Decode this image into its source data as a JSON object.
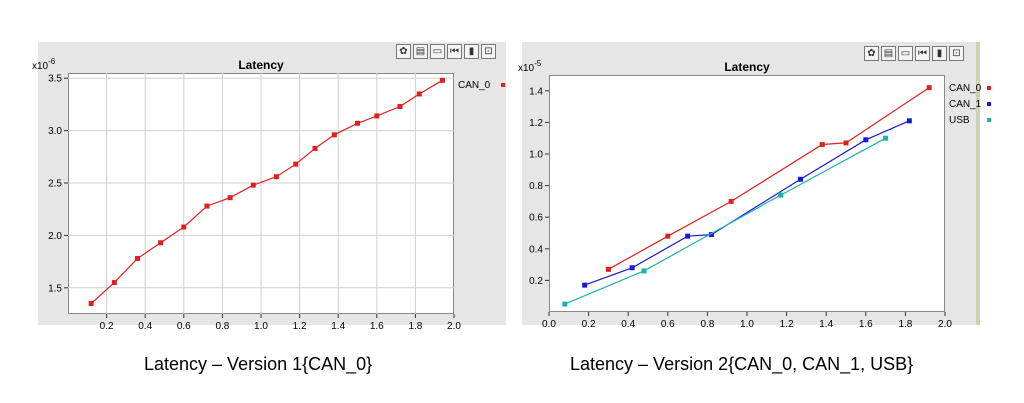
{
  "captions": {
    "chart1": "Latency – Version 1{CAN_0}",
    "chart2": "Latency – Version 2{CAN_0, CAN_1, USB}"
  },
  "toolbar_icons": [
    "palette-icon",
    "save-icon",
    "print-icon",
    "first-page-icon",
    "chart-export-icon",
    "zoom-fit-icon"
  ],
  "chart_data": [
    {
      "type": "line",
      "title": "Latency",
      "y_exponent_label": "x10",
      "y_exponent": "-6",
      "xlim": [
        0.0,
        2.0
      ],
      "ylim": [
        1.25,
        3.55
      ],
      "x_ticks": [
        "0.2",
        "0.4",
        "0.6",
        "0.8",
        "1.0",
        "1.2",
        "1.4",
        "1.6",
        "1.8",
        "2.0"
      ],
      "x_tick_values": [
        0.2,
        0.4,
        0.6,
        0.8,
        1.0,
        1.2,
        1.4,
        1.6,
        1.8,
        2.0
      ],
      "y_ticks": [
        "1.5",
        "2.0",
        "2.5",
        "3.0",
        "3.5"
      ],
      "y_tick_values": [
        1.5,
        2.0,
        2.5,
        3.0,
        3.5
      ],
      "grid": true,
      "legend_position": "right",
      "series": [
        {
          "name": "CAN_0",
          "color": "#e02020",
          "x": [
            0.12,
            0.24,
            0.36,
            0.48,
            0.6,
            0.72,
            0.84,
            0.96,
            1.08,
            1.18,
            1.28,
            1.38,
            1.5,
            1.6,
            1.72,
            1.82,
            1.94
          ],
          "y": [
            1.35,
            1.55,
            1.78,
            1.93,
            2.08,
            2.28,
            2.36,
            2.48,
            2.56,
            2.68,
            2.83,
            2.96,
            3.07,
            3.14,
            3.23,
            3.35,
            3.48
          ]
        }
      ]
    },
    {
      "type": "line",
      "title": "Latency",
      "y_exponent_label": "x10",
      "y_exponent": "-5",
      "xlim": [
        0.0,
        2.0
      ],
      "ylim": [
        0.0,
        1.5
      ],
      "x_ticks": [
        "0.0",
        "0.2",
        "0.4",
        "0.6",
        "0.8",
        "1.0",
        "1.2",
        "1.4",
        "1.6",
        "1.8",
        "2.0"
      ],
      "x_tick_values": [
        0.0,
        0.2,
        0.4,
        0.6,
        0.8,
        1.0,
        1.2,
        1.4,
        1.6,
        1.8,
        2.0
      ],
      "y_ticks": [
        "0.2",
        "0.4",
        "0.6",
        "0.8",
        "1.0",
        "1.2",
        "1.4"
      ],
      "y_tick_values": [
        0.2,
        0.4,
        0.6,
        0.8,
        1.0,
        1.2,
        1.4
      ],
      "grid": false,
      "legend_position": "right",
      "series": [
        {
          "name": "CAN_0",
          "color": "#e02020",
          "x": [
            0.3,
            0.6,
            0.92,
            1.38,
            1.5,
            1.92
          ],
          "y": [
            0.27,
            0.48,
            0.7,
            1.06,
            1.07,
            1.42
          ]
        },
        {
          "name": "CAN_1",
          "color": "#1818d8",
          "x": [
            0.18,
            0.42,
            0.7,
            0.82,
            1.27,
            1.6,
            1.82
          ],
          "y": [
            0.17,
            0.28,
            0.48,
            0.49,
            0.84,
            1.09,
            1.21
          ]
        },
        {
          "name": "USB",
          "color": "#20b0b0",
          "x": [
            0.08,
            0.48,
            1.17,
            1.7
          ],
          "y": [
            0.05,
            0.26,
            0.74,
            1.1
          ]
        }
      ]
    }
  ]
}
